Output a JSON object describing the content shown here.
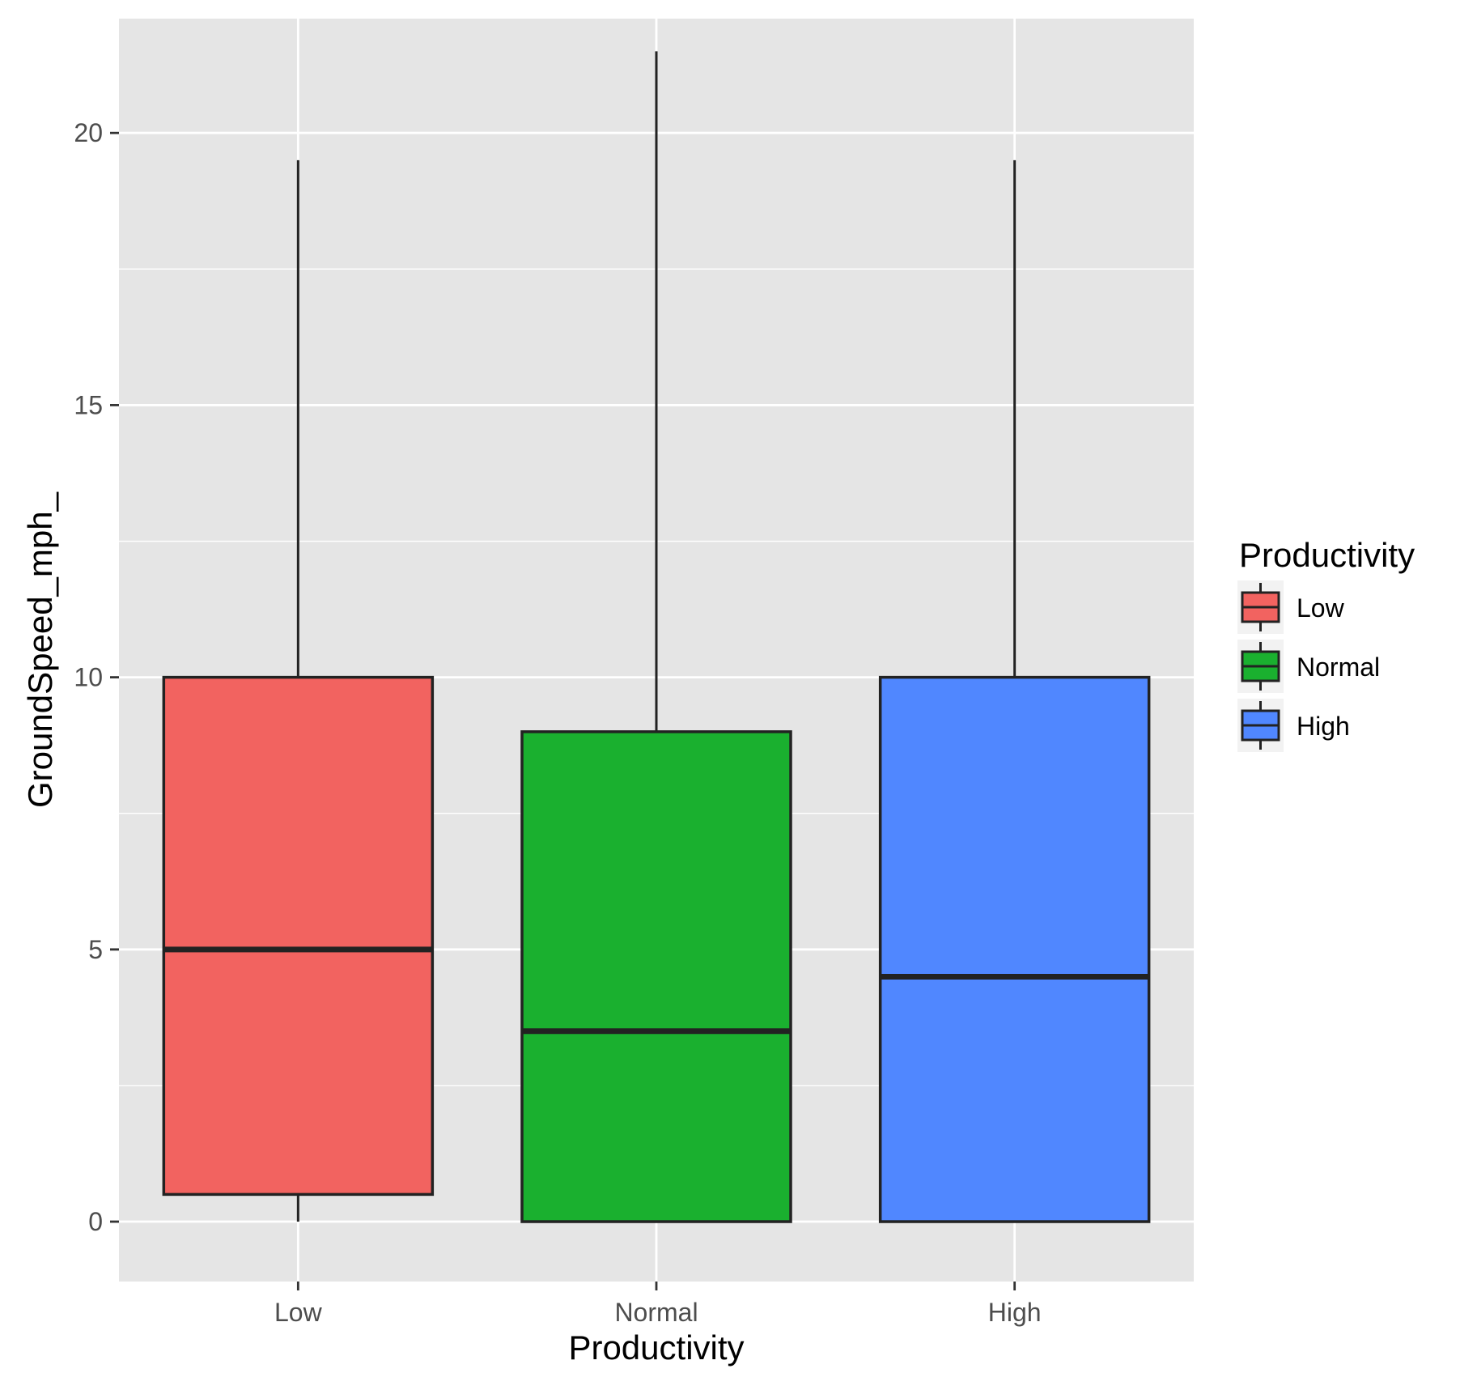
{
  "chart_data": {
    "type": "boxplot",
    "title": "",
    "xlabel": "Productivity",
    "ylabel": "GroundSpeed_mph_",
    "ylim": [
      -1.1,
      22.1
    ],
    "yticks": [
      0,
      5,
      10,
      15,
      20
    ],
    "ytick_labels": [
      "0",
      "5",
      "10",
      "15",
      "20"
    ],
    "grid": true,
    "categories": [
      "Low",
      "Normal",
      "High"
    ],
    "series": [
      {
        "name": "Low",
        "color": "#F26360",
        "whisker_low": 0,
        "q1": 0.5,
        "median": 5,
        "q3": 10,
        "whisker_high": 19.5
      },
      {
        "name": "Normal",
        "color": "#1AB02F",
        "whisker_low": 0,
        "q1": 0,
        "median": 3.5,
        "q3": 9,
        "whisker_high": 21.5
      },
      {
        "name": "High",
        "color": "#5087FF",
        "whisker_low": 0,
        "q1": 0,
        "median": 4.5,
        "q3": 10,
        "whisker_high": 19.5
      }
    ],
    "legend": {
      "title": "Productivity",
      "position": "right",
      "entries": [
        "Low",
        "Normal",
        "High"
      ]
    },
    "colors": {
      "panel_background": "#E5E5E5",
      "grid": "#FFFFFF",
      "box_outline": "#222222",
      "tick_label": "#4D4D4D",
      "axis_title": "#000000"
    }
  }
}
